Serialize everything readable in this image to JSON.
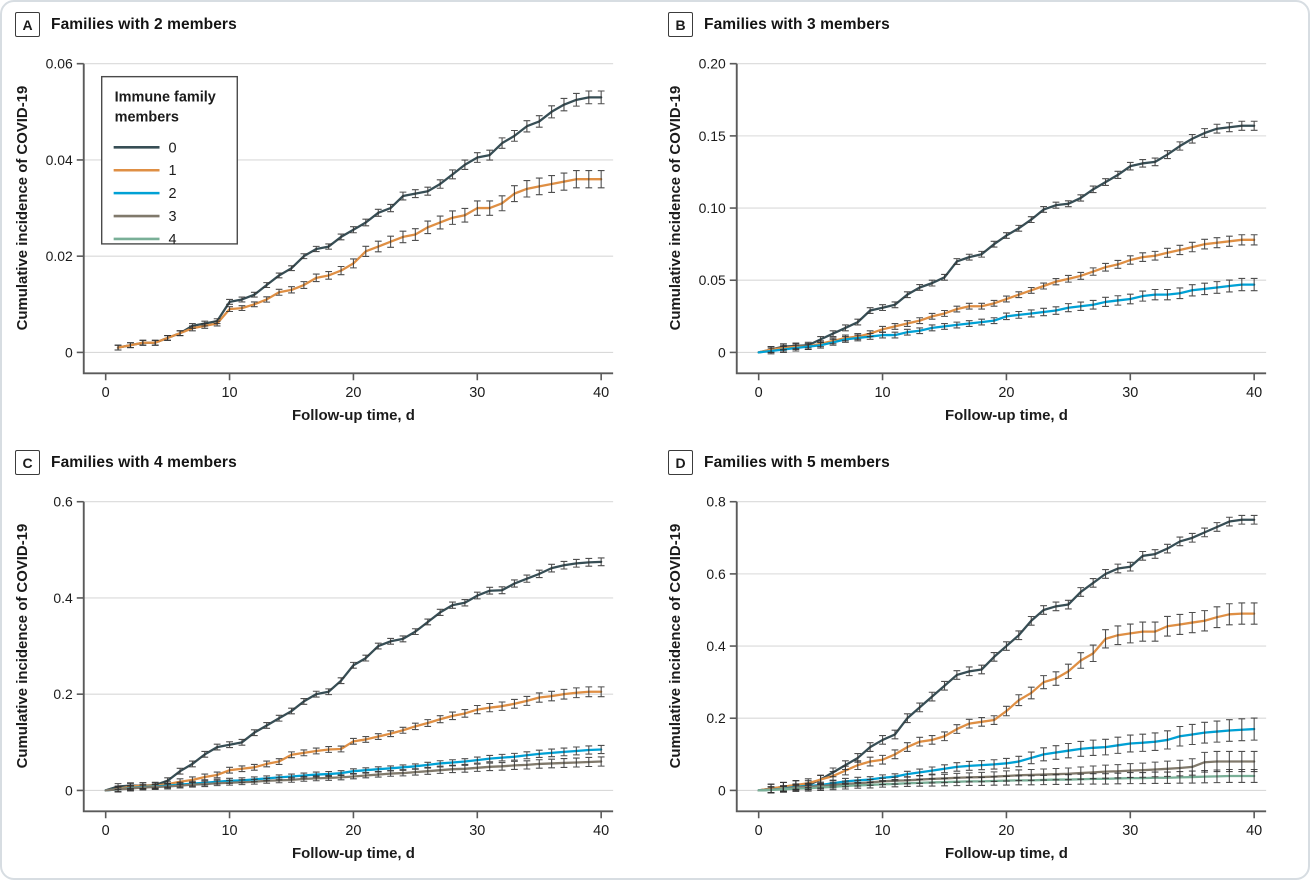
{
  "figure": {
    "background": "#ffffff",
    "card_border_color": "#d7dde2"
  },
  "colors": {
    "axis": "#5a5a5a",
    "tick_text": "#1b1b1b",
    "grid": "#d9d9d9",
    "error_bar": "#303030",
    "legend_border": "#4a4a4a"
  },
  "axes": {
    "x_label": "Follow-up time, d",
    "y_label": "Cumulative incidence of COVID-19"
  },
  "legend": {
    "title_line1": "Immune family",
    "title_line2": "members",
    "items": [
      {
        "label": "0",
        "color": "#374E55"
      },
      {
        "label": "1",
        "color": "#DF8F44"
      },
      {
        "label": "2",
        "color": "#00A1D5"
      },
      {
        "label": "3",
        "color": "#80796B"
      },
      {
        "label": "4",
        "color": "#79AF97"
      }
    ]
  },
  "chart_data": [
    {
      "type": "line",
      "label": "A",
      "title": "Families with 2 members",
      "xlabel": "Follow-up time, d",
      "ylabel": "Cumulative incidence of COVID-19",
      "xlim": [
        0,
        40
      ],
      "xticks": [
        0,
        10,
        20,
        30,
        40
      ],
      "ylim": [
        0,
        0.06
      ],
      "yticks": [
        0,
        0.02,
        0.04,
        0.06
      ],
      "ytick_labels": [
        "0",
        "0.02",
        "0.04",
        "0.06"
      ],
      "x_start": 1,
      "show_legend": true,
      "series": [
        {
          "name": "0",
          "legend_index": 0,
          "err_frac": 0.025,
          "err_min": 0.0005,
          "values": [
            0.001,
            0.0015,
            0.002,
            0.002,
            0.003,
            0.004,
            0.0055,
            0.006,
            0.0065,
            0.0105,
            0.011,
            0.012,
            0.014,
            0.016,
            0.0175,
            0.02,
            0.0215,
            0.022,
            0.024,
            0.0255,
            0.027,
            0.029,
            0.03,
            0.0325,
            0.033,
            0.0335,
            0.035,
            0.037,
            0.039,
            0.0405,
            0.041,
            0.0435,
            0.045,
            0.047,
            0.048,
            0.05,
            0.0515,
            0.0525,
            0.053,
            0.053
          ]
        },
        {
          "name": "1",
          "legend_index": 1,
          "err_frac": 0.05,
          "err_min": 0.0005,
          "values": [
            0.001,
            0.0015,
            0.002,
            0.002,
            0.003,
            0.004,
            0.005,
            0.0055,
            0.006,
            0.009,
            0.0092,
            0.01,
            0.011,
            0.0125,
            0.013,
            0.014,
            0.0155,
            0.016,
            0.017,
            0.0185,
            0.021,
            0.022,
            0.023,
            0.024,
            0.0245,
            0.026,
            0.027,
            0.028,
            0.0285,
            0.03,
            0.03,
            0.031,
            0.033,
            0.034,
            0.0345,
            0.035,
            0.0355,
            0.036,
            0.036,
            0.036
          ]
        }
      ]
    },
    {
      "type": "line",
      "label": "B",
      "title": "Families with 3 members",
      "xlabel": "Follow-up time, d",
      "ylabel": "Cumulative incidence of COVID-19",
      "xlim": [
        0,
        40
      ],
      "xticks": [
        0,
        10,
        20,
        30,
        40
      ],
      "ylim": [
        0,
        0.2
      ],
      "yticks": [
        0,
        0.05,
        0.1,
        0.15,
        0.2
      ],
      "ytick_labels": [
        "0",
        "0.05",
        "0.10",
        "0.15",
        "0.20"
      ],
      "x_start": 0,
      "show_legend": false,
      "series": [
        {
          "name": "0",
          "legend_index": 0,
          "err_frac": 0.02,
          "err_min": 0.002,
          "values": [
            0,
            0.002,
            0.004,
            0.0045,
            0.005,
            0.009,
            0.013,
            0.017,
            0.021,
            0.029,
            0.031,
            0.033,
            0.04,
            0.045,
            0.048,
            0.052,
            0.063,
            0.066,
            0.068,
            0.075,
            0.081,
            0.086,
            0.092,
            0.099,
            0.102,
            0.103,
            0.107,
            0.113,
            0.118,
            0.123,
            0.129,
            0.131,
            0.132,
            0.137,
            0.143,
            0.148,
            0.152,
            0.155,
            0.156,
            0.157,
            0.157
          ]
        },
        {
          "name": "1",
          "legend_index": 1,
          "err_frac": 0.045,
          "err_min": 0.002,
          "values": [
            0,
            0.002,
            0.003,
            0.004,
            0.004,
            0.006,
            0.008,
            0.01,
            0.011,
            0.013,
            0.016,
            0.018,
            0.02,
            0.022,
            0.025,
            0.027,
            0.03,
            0.032,
            0.032,
            0.034,
            0.037,
            0.04,
            0.043,
            0.046,
            0.049,
            0.051,
            0.053,
            0.056,
            0.059,
            0.061,
            0.064,
            0.066,
            0.067,
            0.069,
            0.071,
            0.073,
            0.075,
            0.076,
            0.077,
            0.078,
            0.078
          ]
        },
        {
          "name": "2",
          "legend_index": 2,
          "err_frac": 0.09,
          "err_min": 0.002,
          "values": [
            0,
            0.001,
            0.002,
            0.003,
            0.004,
            0.005,
            0.007,
            0.009,
            0.01,
            0.011,
            0.012,
            0.012,
            0.014,
            0.015,
            0.017,
            0.018,
            0.019,
            0.02,
            0.021,
            0.022,
            0.025,
            0.026,
            0.027,
            0.028,
            0.029,
            0.031,
            0.032,
            0.033,
            0.035,
            0.036,
            0.037,
            0.039,
            0.04,
            0.04,
            0.041,
            0.043,
            0.044,
            0.045,
            0.046,
            0.047,
            0.047
          ]
        }
      ]
    },
    {
      "type": "line",
      "label": "C",
      "title": "Families with 4 members",
      "xlabel": "Follow-up time, d",
      "ylabel": "Cumulative incidence of COVID-19",
      "xlim": [
        0,
        40
      ],
      "xticks": [
        0,
        10,
        20,
        30,
        40
      ],
      "ylim": [
        0,
        0.6
      ],
      "yticks": [
        0,
        0.2,
        0.4,
        0.6
      ],
      "ytick_labels": [
        "0",
        "0.2",
        "0.4",
        "0.6"
      ],
      "x_start": 0,
      "show_legend": false,
      "series": [
        {
          "name": "0",
          "legend_index": 0,
          "err_frac": 0.017,
          "err_min": 0.006,
          "values": [
            0,
            0.008,
            0.01,
            0.01,
            0.011,
            0.02,
            0.04,
            0.055,
            0.075,
            0.09,
            0.095,
            0.1,
            0.12,
            0.135,
            0.15,
            0.165,
            0.185,
            0.2,
            0.205,
            0.228,
            0.26,
            0.275,
            0.3,
            0.31,
            0.315,
            0.33,
            0.35,
            0.37,
            0.385,
            0.39,
            0.405,
            0.415,
            0.416,
            0.43,
            0.44,
            0.45,
            0.462,
            0.468,
            0.472,
            0.474,
            0.475
          ]
        },
        {
          "name": "1",
          "legend_index": 1,
          "err_frac": 0.05,
          "err_min": 0.006,
          "values": [
            0,
            0.003,
            0.008,
            0.01,
            0.01,
            0.013,
            0.018,
            0.022,
            0.028,
            0.032,
            0.042,
            0.045,
            0.048,
            0.055,
            0.06,
            0.074,
            0.078,
            0.082,
            0.085,
            0.086,
            0.102,
            0.106,
            0.112,
            0.118,
            0.125,
            0.133,
            0.14,
            0.148,
            0.155,
            0.16,
            0.168,
            0.172,
            0.175,
            0.18,
            0.186,
            0.193,
            0.196,
            0.2,
            0.203,
            0.205,
            0.205
          ]
        },
        {
          "name": "2",
          "legend_index": 2,
          "err_frac": 0.1,
          "err_min": 0.005,
          "values": [
            0,
            0.002,
            0.005,
            0.007,
            0.008,
            0.01,
            0.012,
            0.014,
            0.016,
            0.018,
            0.02,
            0.021,
            0.023,
            0.025,
            0.027,
            0.029,
            0.031,
            0.033,
            0.034,
            0.036,
            0.04,
            0.042,
            0.044,
            0.046,
            0.048,
            0.05,
            0.053,
            0.056,
            0.058,
            0.06,
            0.063,
            0.066,
            0.068,
            0.07,
            0.073,
            0.076,
            0.078,
            0.08,
            0.082,
            0.084,
            0.085
          ]
        },
        {
          "name": "3",
          "legend_index": 3,
          "err_frac": 0.16,
          "err_min": 0.005,
          "values": [
            0,
            0.002,
            0.004,
            0.006,
            0.007,
            0.008,
            0.01,
            0.012,
            0.013,
            0.015,
            0.016,
            0.017,
            0.018,
            0.02,
            0.021,
            0.022,
            0.024,
            0.025,
            0.026,
            0.027,
            0.029,
            0.031,
            0.033,
            0.035,
            0.036,
            0.038,
            0.04,
            0.042,
            0.044,
            0.045,
            0.047,
            0.049,
            0.05,
            0.052,
            0.053,
            0.055,
            0.056,
            0.057,
            0.058,
            0.059,
            0.06
          ]
        }
      ]
    },
    {
      "type": "line",
      "label": "D",
      "title": "Families with 5 members",
      "xlabel": "Follow-up time, d",
      "ylabel": "Cumulative incidence of COVID-19",
      "xlim": [
        0,
        40
      ],
      "xticks": [
        0,
        10,
        20,
        30,
        40
      ],
      "ylim": [
        0,
        0.8
      ],
      "yticks": [
        0,
        0.2,
        0.4,
        0.6,
        0.8
      ],
      "ytick_labels": [
        "0",
        "0.2",
        "0.4",
        "0.6",
        "0.8"
      ],
      "x_start": 0,
      "show_legend": false,
      "series": [
        {
          "name": "0",
          "legend_index": 0,
          "err_frac": 0.016,
          "err_min": 0.012,
          "values": [
            0,
            0.005,
            0.01,
            0.015,
            0.015,
            0.03,
            0.05,
            0.07,
            0.09,
            0.12,
            0.14,
            0.155,
            0.2,
            0.23,
            0.26,
            0.29,
            0.32,
            0.33,
            0.335,
            0.37,
            0.4,
            0.43,
            0.47,
            0.5,
            0.51,
            0.515,
            0.55,
            0.575,
            0.6,
            0.615,
            0.62,
            0.65,
            0.655,
            0.67,
            0.69,
            0.7,
            0.715,
            0.73,
            0.745,
            0.75,
            0.75
          ]
        },
        {
          "name": "1",
          "legend_index": 1,
          "err_frac": 0.06,
          "err_min": 0.012,
          "values": [
            0,
            0.005,
            0.01,
            0.015,
            0.02,
            0.03,
            0.04,
            0.055,
            0.07,
            0.08,
            0.085,
            0.1,
            0.12,
            0.135,
            0.14,
            0.15,
            0.17,
            0.185,
            0.19,
            0.195,
            0.22,
            0.25,
            0.27,
            0.3,
            0.31,
            0.33,
            0.36,
            0.38,
            0.42,
            0.43,
            0.435,
            0.44,
            0.44,
            0.455,
            0.46,
            0.465,
            0.47,
            0.48,
            0.488,
            0.49,
            0.49
          ]
        },
        {
          "name": "2",
          "legend_index": 2,
          "err_frac": 0.18,
          "err_min": 0.008,
          "values": [
            0,
            0.002,
            0.005,
            0.01,
            0.012,
            0.015,
            0.02,
            0.025,
            0.028,
            0.03,
            0.035,
            0.038,
            0.045,
            0.05,
            0.055,
            0.06,
            0.065,
            0.068,
            0.07,
            0.072,
            0.075,
            0.08,
            0.09,
            0.1,
            0.105,
            0.11,
            0.115,
            0.118,
            0.12,
            0.125,
            0.13,
            0.132,
            0.135,
            0.14,
            0.15,
            0.155,
            0.16,
            0.163,
            0.166,
            0.168,
            0.17
          ]
        },
        {
          "name": "3",
          "legend_index": 3,
          "err_frac": 0.35,
          "err_min": 0.008,
          "values": [
            0,
            0.002,
            0.004,
            0.008,
            0.01,
            0.012,
            0.015,
            0.018,
            0.02,
            0.022,
            0.025,
            0.027,
            0.028,
            0.03,
            0.032,
            0.033,
            0.035,
            0.036,
            0.037,
            0.038,
            0.04,
            0.042,
            0.043,
            0.044,
            0.045,
            0.046,
            0.048,
            0.05,
            0.052,
            0.053,
            0.055,
            0.056,
            0.058,
            0.06,
            0.062,
            0.065,
            0.078,
            0.08,
            0.08,
            0.08,
            0.08
          ]
        },
        {
          "name": "4",
          "legend_index": 4,
          "err_frac": 0.45,
          "err_min": 0.008,
          "values": [
            0,
            0.001,
            0.003,
            0.005,
            0.006,
            0.008,
            0.01,
            0.012,
            0.014,
            0.015,
            0.017,
            0.018,
            0.02,
            0.021,
            0.022,
            0.023,
            0.024,
            0.025,
            0.025,
            0.026,
            0.027,
            0.028,
            0.028,
            0.029,
            0.03,
            0.03,
            0.031,
            0.032,
            0.032,
            0.033,
            0.034,
            0.034,
            0.035,
            0.035,
            0.036,
            0.037,
            0.038,
            0.039,
            0.04,
            0.04,
            0.04
          ]
        }
      ]
    }
  ]
}
